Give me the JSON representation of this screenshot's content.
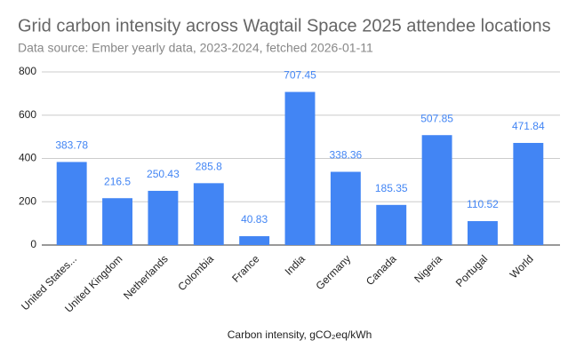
{
  "chart_data": {
    "type": "bar",
    "title": "Grid carbon intensity across Wagtail Space 2025 attendee locations",
    "subtitle": "Data source: Ember yearly data, 2023-2024, fetched 2026-01-11",
    "x_label": "Carbon intensity, gCO₂eq/kWh",
    "categories": [
      "United States...",
      "United Kingdom",
      "Netherlands",
      "Colombia",
      "France",
      "India",
      "Germany",
      "Canada",
      "Nigeria",
      "Portugal",
      "World"
    ],
    "values": [
      383.78,
      216.5,
      250.43,
      285.8,
      40.83,
      707.45,
      338.36,
      185.35,
      507.85,
      110.52,
      471.84
    ],
    "color": "#4285f4",
    "ylim": [
      0,
      800
    ],
    "yticks": [
      0,
      200,
      400,
      600,
      800
    ],
    "grid": true
  }
}
